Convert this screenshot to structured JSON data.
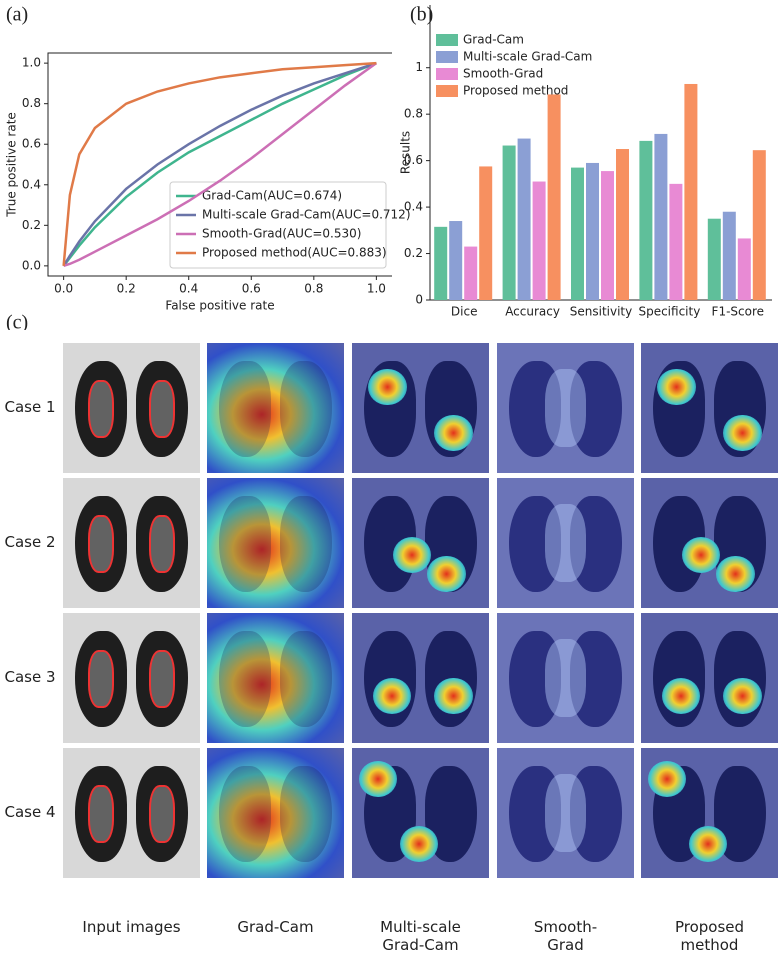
{
  "panel_labels": [
    "(a)",
    "(b)",
    "(c)"
  ],
  "chart_data": [
    {
      "type": "line",
      "xlabel": "False positive rate",
      "ylabel": "True positive rate",
      "x": [
        0,
        0.02,
        0.05,
        0.1,
        0.2,
        0.3,
        0.4,
        0.5,
        0.6,
        0.7,
        0.8,
        0.9,
        1.0
      ],
      "series": [
        {
          "name": "Grad-Cam(AUC=0.674)",
          "color": "#3fb58e",
          "values": [
            0,
            0.04,
            0.1,
            0.19,
            0.34,
            0.46,
            0.56,
            0.64,
            0.72,
            0.8,
            0.87,
            0.94,
            1.0
          ]
        },
        {
          "name": "Multi-scale Grad-Cam(AUC=0.712)",
          "color": "#6a74a8",
          "values": [
            0,
            0.05,
            0.12,
            0.22,
            0.38,
            0.5,
            0.6,
            0.69,
            0.77,
            0.84,
            0.9,
            0.95,
            1.0
          ]
        },
        {
          "name": "Smooth-Grad(AUC=0.530)",
          "color": "#cc6fb5",
          "values": [
            0,
            0.01,
            0.03,
            0.07,
            0.15,
            0.23,
            0.32,
            0.42,
            0.53,
            0.65,
            0.77,
            0.89,
            1.0
          ]
        },
        {
          "name": "Proposed method(AUC=0.883)",
          "color": "#e07a48",
          "values": [
            0,
            0.35,
            0.55,
            0.68,
            0.8,
            0.86,
            0.9,
            0.93,
            0.95,
            0.97,
            0.98,
            0.99,
            1.0
          ]
        }
      ],
      "xlim": [
        -0.05,
        1.05
      ],
      "ylim": [
        -0.05,
        1.05
      ],
      "xticks": [
        {
          "value": 0,
          "label": "0.0"
        },
        0.2,
        0.4,
        0.6,
        0.8,
        {
          "value": 1,
          "label": "1.0"
        }
      ],
      "yticks": [
        {
          "value": 0,
          "label": "0.0"
        },
        0.2,
        0.4,
        0.6,
        0.8,
        {
          "value": 1,
          "label": "1.0"
        }
      ],
      "legend": "lower right"
    },
    {
      "type": "bar",
      "ylabel": "Results",
      "categories": [
        "Dice",
        "Accuracy",
        "Sensitivity",
        "Specificity",
        "F1-Score"
      ],
      "series": [
        {
          "name": "Grad-Cam",
          "color": "#5fbf9a",
          "values": [
            0.315,
            0.665,
            0.57,
            0.685,
            0.35
          ]
        },
        {
          "name": "Multi-scale Grad-Cam",
          "color": "#8b9fd4",
          "values": [
            0.34,
            0.695,
            0.59,
            0.715,
            0.38
          ]
        },
        {
          "name": "Smooth-Grad",
          "color": "#e88ad4",
          "values": [
            0.23,
            0.51,
            0.555,
            0.5,
            0.265
          ]
        },
        {
          "name": "Proposed method",
          "color": "#f79060",
          "values": [
            0.575,
            0.885,
            0.65,
            0.93,
            0.645
          ]
        }
      ],
      "ylim": [
        0,
        1.27
      ],
      "yticks": [
        0,
        0.2,
        0.4,
        0.6,
        0.8,
        1
      ],
      "legend": "upper left"
    }
  ],
  "grid": {
    "rows": [
      "Case 1",
      "Case 2",
      "Case 3",
      "Case 4"
    ],
    "columns": [
      "Input images",
      "Grad-Cam",
      "Multi-scale Grad-Cam",
      "Smooth-Grad",
      "Proposed method"
    ]
  }
}
